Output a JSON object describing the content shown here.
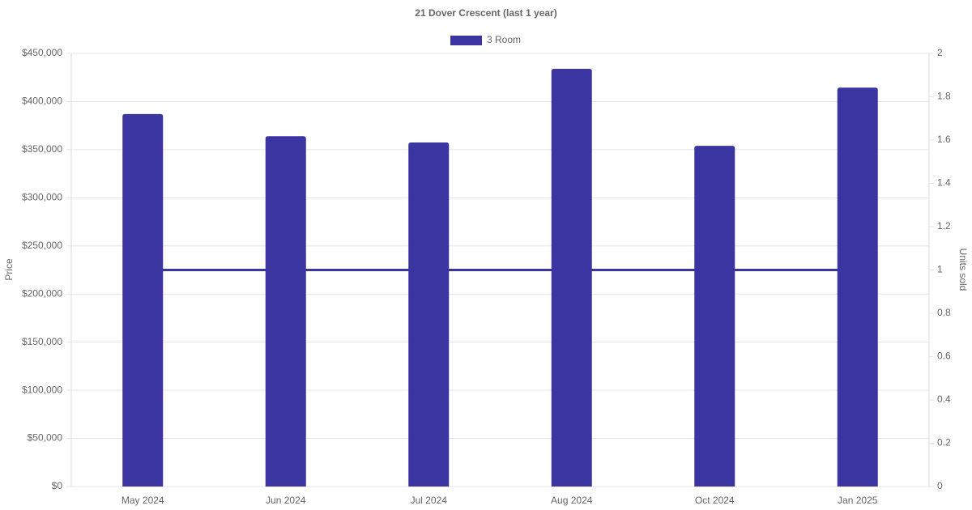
{
  "chart_data": {
    "type": "bar",
    "title": "21 Dover Crescent (last 1 year)",
    "categories": [
      "May 2024",
      "Jun 2024",
      "Jul 2024",
      "Aug 2024",
      "Oct 2024",
      "Jan 2025"
    ],
    "series": [
      {
        "name": "3 Room",
        "type": "bar",
        "color": "#3a35a0",
        "values": [
          387000,
          364000,
          357500,
          434000,
          354000,
          414500
        ]
      },
      {
        "type": "line",
        "axis": "y2",
        "color": "#3a35a0",
        "values": [
          1,
          1,
          1,
          1,
          1,
          1
        ]
      }
    ],
    "y_label": "Price",
    "y2_label": "Units sold",
    "ylim": [
      0,
      450000
    ],
    "yticks": [
      {
        "value": 0,
        "label": "$0"
      },
      {
        "value": 50000,
        "label": "$50,000"
      },
      {
        "value": 100000,
        "label": "$100,000"
      },
      {
        "value": 150000,
        "label": "$150,000"
      },
      {
        "value": 200000,
        "label": "$200,000"
      },
      {
        "value": 250000,
        "label": "$250,000"
      },
      {
        "value": 300000,
        "label": "$300,000"
      },
      {
        "value": 350000,
        "label": "$350,000"
      },
      {
        "value": 400000,
        "label": "$400,000"
      },
      {
        "value": 450000,
        "label": "$450,000"
      }
    ],
    "y2lim": [
      0,
      2
    ],
    "y2ticks": [
      0,
      0.2,
      0.4,
      0.6,
      0.8,
      1,
      1.2,
      1.4,
      1.6,
      1.8,
      2
    ],
    "grid": true,
    "legend": "top"
  }
}
